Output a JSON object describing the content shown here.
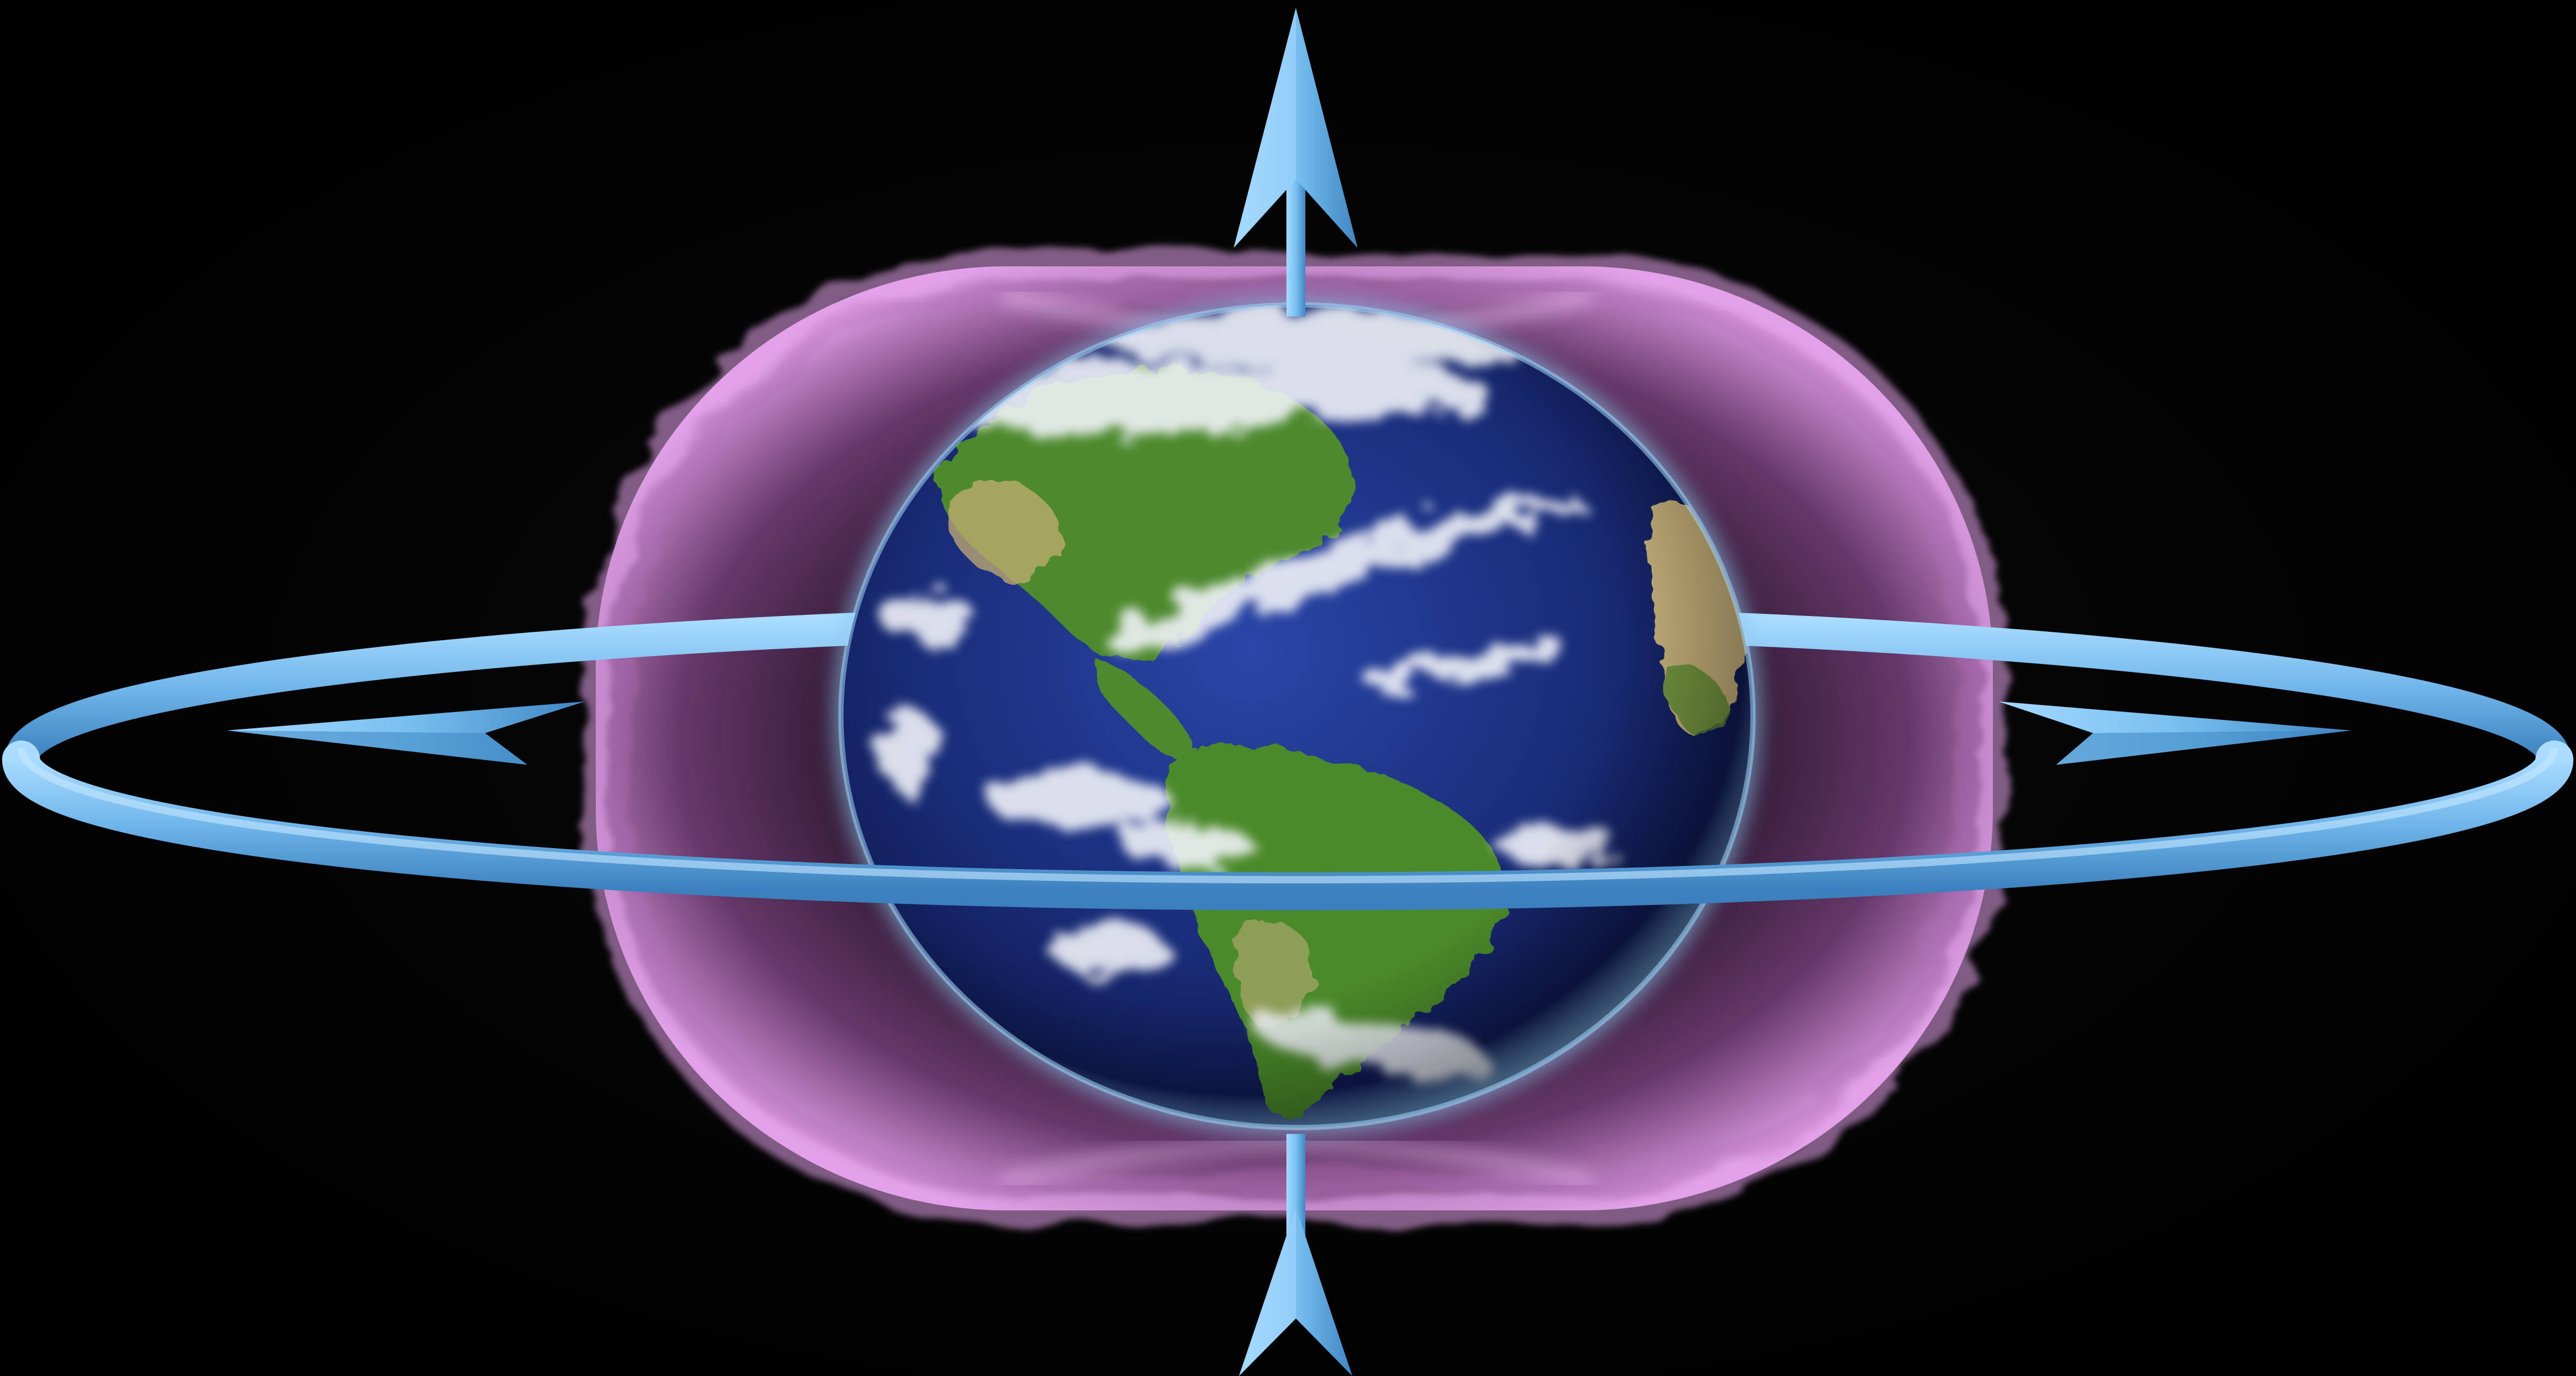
{
  "scene": {
    "subject": "earth-with-magnetic-field-torus",
    "colors": {
      "background": "#020103",
      "field_glow": "#e39be8",
      "field_dark": "#3a1f3d",
      "arrow_blue": "#7cc4f0",
      "arrow_shadow": "#3d86c2",
      "ocean": "#1b2e7a",
      "land_green": "#4f8a2c",
      "land_tan": "#c7b27a",
      "cloud": "#f2f4f8"
    },
    "icons": {
      "north_arrow": "arrow-up-icon",
      "south_arrow": "arrow-up-icon",
      "equatorial_ring": "ring-icon",
      "left_ring_arrow": "arrow-left-icon",
      "right_ring_arrow": "arrow-right-icon"
    }
  }
}
